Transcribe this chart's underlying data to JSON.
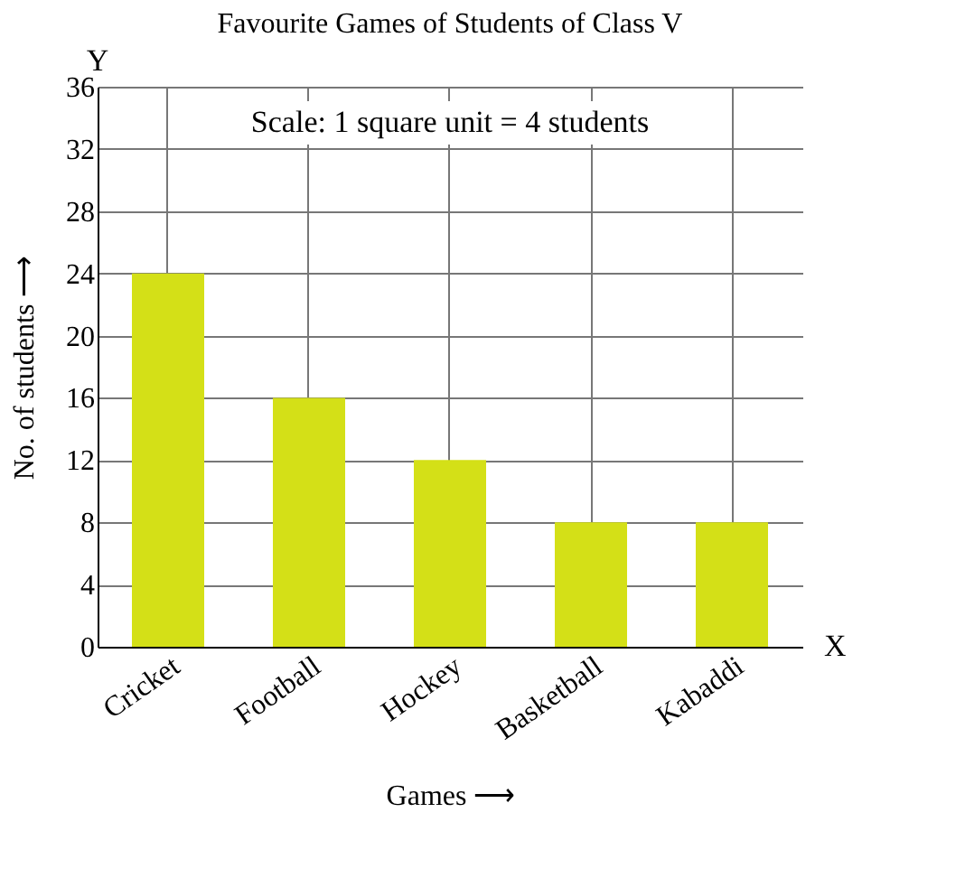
{
  "chart_data": {
    "type": "bar",
    "title": "Favourite Games of Students of Class V",
    "xlabel": "Games ⟶",
    "ylabel": "No. of students ⟶",
    "categories": [
      "Cricket",
      "Football",
      "Hockey",
      "Basketball",
      "Kabaddi"
    ],
    "values": [
      24,
      16,
      12,
      8,
      8
    ],
    "color": "#d4e017",
    "ylim": [
      0,
      36
    ],
    "yticks": [
      0,
      4,
      8,
      12,
      16,
      20,
      24,
      28,
      32,
      36
    ],
    "grid": true,
    "annotations": [
      "Scale: 1 square unit = 4 students",
      "Y",
      "X"
    ]
  }
}
